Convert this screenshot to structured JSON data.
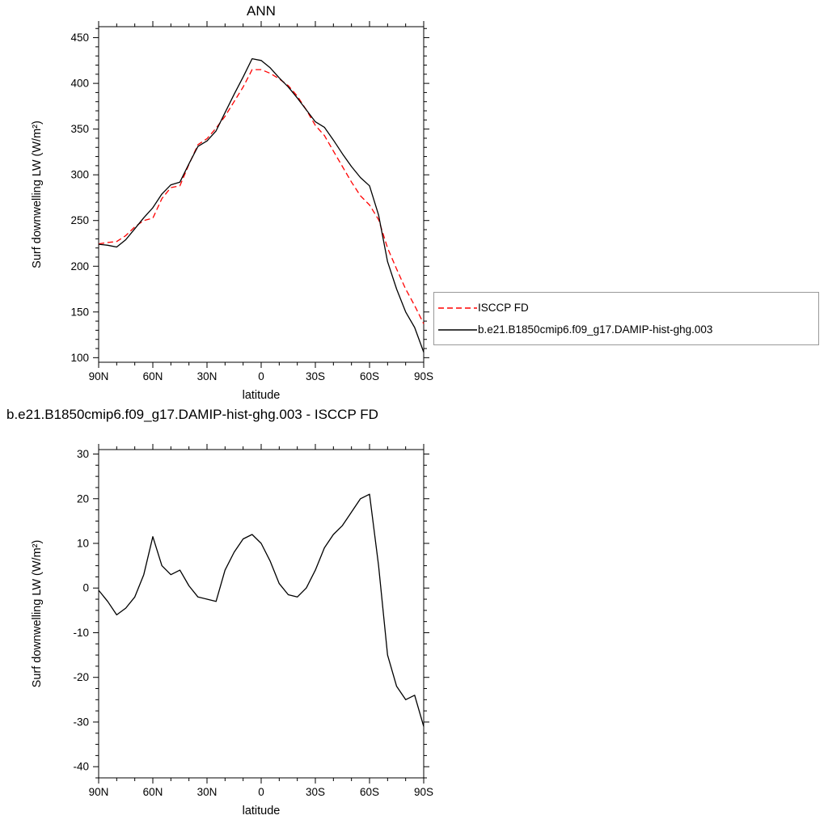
{
  "figure": {
    "background": "#ffffff",
    "text_color": "#000000"
  },
  "legend": {
    "border_color": "#999999",
    "position": "right of top chart"
  },
  "chart_data": [
    {
      "id": "ann-zonal-mean",
      "type": "line",
      "title": "ANN",
      "xlabel": "latitude",
      "ylabel": "Surf downwelling LW (W/m²)",
      "grid": false,
      "xlim": [
        90,
        -90
      ],
      "ylim": [
        95,
        462
      ],
      "x_ticks": {
        "values": [
          90,
          60,
          30,
          0,
          -30,
          -60,
          -90
        ],
        "labels": [
          "90N",
          "60N",
          "30N",
          "0",
          "30S",
          "60S",
          "90S"
        ],
        "minor_step": 10
      },
      "y_ticks": {
        "values": [
          100,
          150,
          200,
          250,
          300,
          350,
          400,
          450
        ],
        "labels": [
          "100",
          "150",
          "200",
          "250",
          "300",
          "350",
          "400",
          "450"
        ],
        "minor_step": 10
      },
      "legend_position": "right",
      "x": [
        90,
        85,
        80,
        75,
        70,
        65,
        60,
        55,
        50,
        45,
        40,
        35,
        30,
        25,
        20,
        15,
        10,
        5,
        0,
        -5,
        -10,
        -15,
        -20,
        -25,
        -30,
        -35,
        -40,
        -45,
        -50,
        -55,
        -60,
        -65,
        -70,
        -75,
        -80,
        -85,
        -90
      ],
      "series": [
        {
          "name": "ISCCP FD",
          "color": "#ff0000",
          "dash": "dashed",
          "values": [
            224.5,
            226,
            227,
            233.5,
            243,
            250,
            252.5,
            274,
            286,
            288,
            311.5,
            333,
            339.5,
            351,
            364,
            380,
            396,
            415,
            415,
            411,
            405,
            397.5,
            386,
            371,
            354,
            343,
            326,
            309,
            292,
            277,
            267,
            251,
            220,
            197,
            175,
            157,
            137
          ]
        },
        {
          "name": "b.e21.B1850cmip6.f09_g17.DAMIP-hist-ghg.003",
          "color": "#000000",
          "dash": "solid",
          "values": [
            224,
            223,
            221,
            229,
            241,
            253,
            264,
            279,
            289,
            292,
            312,
            331,
            337,
            348,
            368,
            388,
            407,
            427,
            425,
            417,
            406,
            396,
            384,
            371,
            358,
            352,
            338,
            323,
            309,
            297,
            288,
            256,
            205,
            175,
            150,
            133,
            106
          ]
        }
      ]
    },
    {
      "id": "difference",
      "type": "line",
      "title": "b.e21.B1850cmip6.f09_g17.DAMIP-hist-ghg.003 - ISCCP FD",
      "xlabel": "latitude",
      "ylabel": "Surf downwelling LW (W/m²)",
      "grid": false,
      "xlim": [
        90,
        -90
      ],
      "ylim": [
        -42.5,
        31
      ],
      "x_ticks": {
        "values": [
          90,
          60,
          30,
          0,
          -30,
          -60,
          -90
        ],
        "labels": [
          "90N",
          "60N",
          "30N",
          "0",
          "30S",
          "60S",
          "90S"
        ],
        "minor_step": 10
      },
      "y_ticks": {
        "values": [
          -40,
          -30,
          -20,
          -10,
          0,
          10,
          20,
          30
        ],
        "labels": [
          "-40",
          "-30",
          "-20",
          "-10",
          "0",
          "10",
          "20",
          "30"
        ],
        "minor_step": 2.5
      },
      "x": [
        90,
        85,
        80,
        75,
        70,
        65,
        60,
        55,
        50,
        45,
        40,
        35,
        30,
        25,
        20,
        15,
        10,
        5,
        0,
        -5,
        -10,
        -15,
        -20,
        -25,
        -30,
        -35,
        -40,
        -45,
        -50,
        -55,
        -60,
        -65,
        -70,
        -75,
        -80,
        -85,
        -90
      ],
      "series": [
        {
          "name": "b.e21.B1850cmip6.f09_g17.DAMIP-hist-ghg.003 - ISCCP FD",
          "color": "#000000",
          "dash": "solid",
          "values": [
            -0.5,
            -3,
            -6,
            -4.5,
            -2,
            3,
            11.5,
            5,
            3,
            4,
            0.5,
            -2,
            -2.5,
            -3,
            4,
            8,
            11,
            12,
            10,
            6,
            1,
            -1.5,
            -2,
            0,
            4,
            9,
            12,
            14,
            17,
            20,
            21,
            5,
            -15,
            -22,
            -25,
            -24,
            -31
          ]
        }
      ]
    }
  ]
}
